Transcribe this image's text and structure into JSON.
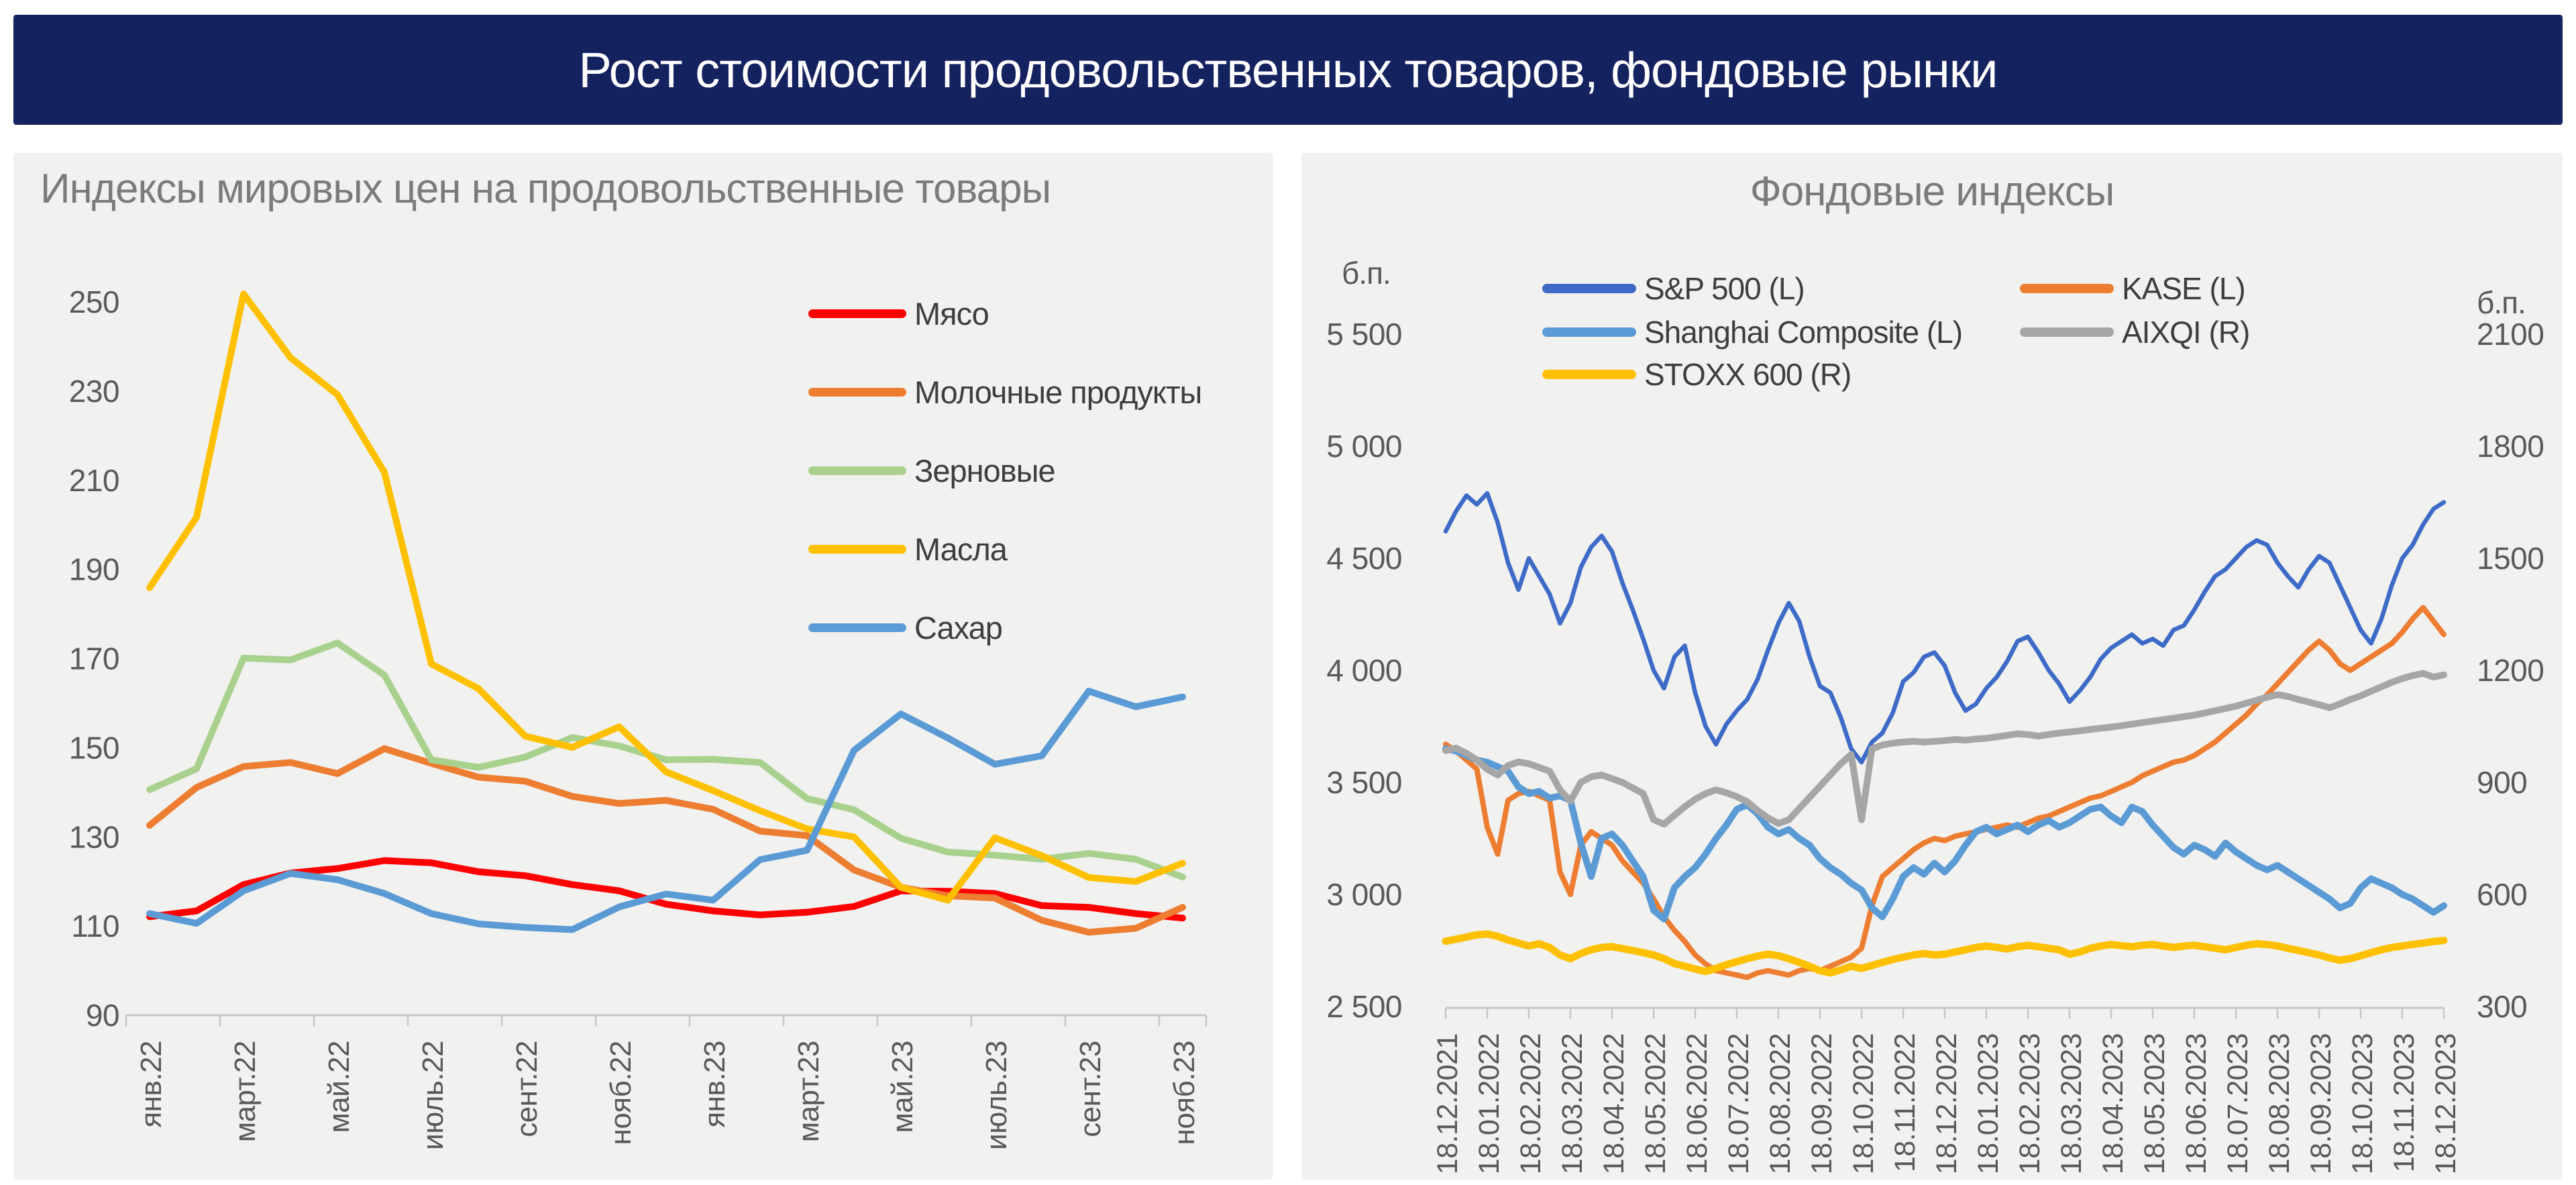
{
  "banner": {
    "title": "Рост стоимости продовольственных товаров, фондовые рынки",
    "bg_color": "#14225F",
    "text_color": "#FFFFFF"
  },
  "theme": {
    "panel_bg": "#F1F1F0",
    "title_color": "#7B7B7B",
    "axis_label_color": "#595959",
    "axis_line_color": "#C6C6C6"
  },
  "chart_data": [
    {
      "type": "line",
      "title": "Индексы мировых цен на продовольственные товары",
      "ylim": [
        90,
        250
      ],
      "y_ticks": [
        250,
        230,
        210,
        190,
        170,
        150,
        130,
        110,
        90
      ],
      "x_labels": [
        "янв.22",
        "март.22",
        "май.22",
        "июль.22",
        "сент.22",
        "нояб.22",
        "янв.23",
        "март.23",
        "май.23",
        "июль.23",
        "сент.23",
        "нояб.23"
      ],
      "legend_position": "right-top-vertical",
      "grid": false,
      "series": [
        {
          "name": "Мясо",
          "color": "#FF0000",
          "values": [
            112.1,
            113.4,
            119.3,
            121.9,
            122.9,
            124.7,
            124.2,
            122.2,
            121.3,
            119.3,
            117.9,
            114.9,
            113.4,
            112.5,
            113.1,
            114.4,
            117.9,
            117.8,
            117.3,
            114.6,
            114.2,
            112.8,
            111.8
          ]
        },
        {
          "name": "Молочные продукты",
          "color": "#ED7D31",
          "values": [
            132.6,
            141.1,
            145.8,
            146.7,
            144.2,
            149.8,
            146.5,
            143.4,
            142.5,
            139.1,
            137.5,
            138.2,
            136.2,
            131.3,
            130.3,
            122.6,
            118.7,
            116.8,
            116.3,
            111.3,
            108.6,
            109.5,
            114.2
          ]
        },
        {
          "name": "Зерновые",
          "color": "#A9D18E",
          "values": [
            140.6,
            145.3,
            170.1,
            169.7,
            173.5,
            166.3,
            147.3,
            145.6,
            147.9,
            152.3,
            150.4,
            147.3,
            147.4,
            146.7,
            138.6,
            136.1,
            129.7,
            126.6,
            125.9,
            125.0,
            126.3,
            125.0,
            121.0
          ]
        },
        {
          "name": "Масла",
          "color": "#FFC000",
          "values": [
            185.9,
            201.7,
            251.8,
            237.5,
            229.2,
            211.8,
            168.8,
            163.3,
            152.6,
            150.1,
            154.7,
            144.6,
            140.4,
            135.9,
            131.8,
            130.0,
            118.7,
            115.8,
            129.8,
            125.8,
            120.9,
            120.0,
            124.1
          ]
        },
        {
          "name": "Сахар",
          "color": "#5B9BD5",
          "values": [
            112.8,
            110.6,
            117.9,
            121.8,
            120.4,
            117.3,
            112.8,
            110.5,
            109.7,
            109.2,
            114.3,
            117.2,
            115.8,
            124.9,
            127.0,
            149.4,
            157.6,
            152.2,
            146.3,
            148.2,
            162.7,
            159.2,
            161.4
          ]
        }
      ]
    },
    {
      "type": "line",
      "title": "Фондовые индексы",
      "axis_unit_left": "б.п.",
      "axis_unit_right": "б.п.",
      "y_left_ticks": [
        "5 500",
        "5 000",
        "4 500",
        "4 000",
        "3 500",
        "3 000",
        "2 500"
      ],
      "y_right_ticks": [
        "2100",
        "1800",
        "1500",
        "1200",
        "900",
        "600",
        "300"
      ],
      "y_left_range": [
        2500,
        5500
      ],
      "y_right_range": [
        300,
        2100
      ],
      "grid": false,
      "x_labels": [
        "18.12.2021",
        "18.01.2022",
        "18.02.2022",
        "18.03.2022",
        "18.04.2022",
        "18.05.2022",
        "18.06.2022",
        "18.07.2022",
        "18.08.2022",
        "18.09.2022",
        "18.10.2022",
        "18.11.2022",
        "18.12.2022",
        "18.01.2023",
        "18.02.2023",
        "18.03.2023",
        "18.04.2023",
        "18.05.2023",
        "18.06.2023",
        "18.07.2023",
        "18.08.2023",
        "18.09.2023",
        "18.10.2023",
        "18.11.2023",
        "18.12.2023"
      ],
      "legend_layout": [
        [
          "S&P 500 (L)",
          "KASE (L)"
        ],
        [
          "Shanghai Composite (L)",
          "AIXQI (R)"
        ],
        [
          "STOXX 600 (R)",
          null
        ]
      ],
      "series": [
        {
          "name": "S&P 500 (L)",
          "axis": "left",
          "color": "#3D6BC7",
          "line_width": 6.5,
          "values": [
            4620,
            4710,
            4780,
            4740,
            4790,
            4660,
            4480,
            4360,
            4500,
            4420,
            4340,
            4210,
            4300,
            4460,
            4550,
            4600,
            4530,
            4390,
            4270,
            4140,
            4000,
            3920,
            4060,
            4110,
            3900,
            3750,
            3670,
            3760,
            3820,
            3870,
            3960,
            4090,
            4210,
            4300,
            4220,
            4060,
            3930,
            3900,
            3790,
            3650,
            3590,
            3680,
            3720,
            3810,
            3950,
            3990,
            4060,
            4080,
            4020,
            3900,
            3820,
            3850,
            3920,
            3970,
            4040,
            4130,
            4150,
            4080,
            4000,
            3940,
            3860,
            3910,
            3970,
            4050,
            4100,
            4130,
            4160,
            4120,
            4140,
            4110,
            4180,
            4200,
            4270,
            4350,
            4420,
            4450,
            4500,
            4550,
            4580,
            4560,
            4480,
            4420,
            4370,
            4450,
            4510,
            4480,
            4380,
            4280,
            4180,
            4120,
            4230,
            4380,
            4500,
            4560,
            4650,
            4720,
            4750
          ]
        },
        {
          "name": "KASE (L)",
          "axis": "left",
          "color": "#ED7D31",
          "line_width": 8,
          "values": [
            3670,
            3640,
            3600,
            3560,
            3300,
            3180,
            3420,
            3450,
            3460,
            3440,
            3420,
            3100,
            3000,
            3220,
            3280,
            3250,
            3220,
            3150,
            3100,
            3050,
            2980,
            2900,
            2840,
            2790,
            2730,
            2690,
            2660,
            2650,
            2640,
            2630,
            2650,
            2660,
            2650,
            2640,
            2660,
            2670,
            2660,
            2680,
            2700,
            2720,
            2760,
            2950,
            3080,
            3120,
            3160,
            3200,
            3230,
            3250,
            3240,
            3260,
            3270,
            3280,
            3290,
            3300,
            3310,
            3300,
            3320,
            3340,
            3350,
            3370,
            3390,
            3410,
            3430,
            3440,
            3460,
            3480,
            3500,
            3530,
            3550,
            3570,
            3590,
            3600,
            3620,
            3650,
            3680,
            3720,
            3760,
            3800,
            3850,
            3890,
            3940,
            3990,
            4040,
            4090,
            4130,
            4090,
            4030,
            4000,
            4030,
            4060,
            4090,
            4120,
            4170,
            4230,
            4280,
            4220,
            4160
          ]
        },
        {
          "name": "Shanghai Composite (L)",
          "axis": "left",
          "color": "#5B9BD5",
          "line_width": 10,
          "values": [
            3650,
            3640,
            3620,
            3600,
            3590,
            3570,
            3550,
            3480,
            3450,
            3460,
            3430,
            3440,
            3420,
            3230,
            3080,
            3250,
            3270,
            3220,
            3150,
            3080,
            2930,
            2890,
            3030,
            3080,
            3120,
            3180,
            3250,
            3310,
            3380,
            3400,
            3360,
            3300,
            3270,
            3290,
            3250,
            3220,
            3160,
            3120,
            3090,
            3050,
            3020,
            2940,
            2900,
            2980,
            3080,
            3120,
            3090,
            3140,
            3100,
            3150,
            3220,
            3280,
            3300,
            3270,
            3290,
            3310,
            3280,
            3310,
            3330,
            3300,
            3320,
            3350,
            3380,
            3390,
            3350,
            3320,
            3390,
            3370,
            3310,
            3260,
            3210,
            3180,
            3220,
            3200,
            3170,
            3230,
            3190,
            3160,
            3130,
            3110,
            3130,
            3100,
            3070,
            3040,
            3010,
            2980,
            2940,
            2960,
            3030,
            3070,
            3050,
            3030,
            3000,
            2980,
            2950,
            2920,
            2950
          ]
        },
        {
          "name": "AIXQI (R)",
          "axis": "right",
          "color": "#A6A6A6",
          "line_width": 10,
          "values": [
            985,
            992,
            978,
            960,
            935,
            920,
            945,
            955,
            950,
            940,
            930,
            880,
            850,
            900,
            915,
            920,
            910,
            900,
            885,
            870,
            800,
            788,
            812,
            835,
            855,
            870,
            880,
            872,
            862,
            848,
            825,
            805,
            790,
            800,
            830,
            860,
            890,
            920,
            950,
            975,
            800,
            990,
            1000,
            1005,
            1008,
            1010,
            1008,
            1010,
            1012,
            1015,
            1013,
            1016,
            1018,
            1022,
            1026,
            1030,
            1028,
            1024,
            1028,
            1032,
            1035,
            1038,
            1042,
            1045,
            1048,
            1052,
            1056,
            1060,
            1064,
            1068,
            1072,
            1076,
            1080,
            1086,
            1092,
            1098,
            1104,
            1112,
            1120,
            1128,
            1135,
            1130,
            1122,
            1115,
            1108,
            1100,
            1110,
            1122,
            1132,
            1144,
            1156,
            1168,
            1178,
            1186,
            1192,
            1182,
            1188
          ]
        },
        {
          "name": "STOXX 600 (R)",
          "axis": "right",
          "color": "#FFC000",
          "line_width": 11,
          "values": [
            475,
            480,
            486,
            492,
            494,
            488,
            478,
            470,
            462,
            468,
            458,
            438,
            428,
            442,
            452,
            458,
            460,
            455,
            450,
            444,
            438,
            428,
            415,
            408,
            400,
            394,
            402,
            412,
            420,
            428,
            435,
            440,
            436,
            428,
            418,
            408,
            396,
            390,
            398,
            408,
            402,
            410,
            418,
            426,
            432,
            438,
            442,
            438,
            440,
            446,
            452,
            458,
            462,
            458,
            454,
            460,
            464,
            460,
            456,
            452,
            440,
            446,
            456,
            462,
            466,
            463,
            460,
            464,
            466,
            462,
            458,
            462,
            464,
            460,
            456,
            452,
            458,
            464,
            468,
            466,
            462,
            456,
            450,
            444,
            438,
            430,
            424,
            428,
            436,
            444,
            452,
            458,
            462,
            466,
            470,
            474,
            477
          ]
        }
      ]
    }
  ]
}
